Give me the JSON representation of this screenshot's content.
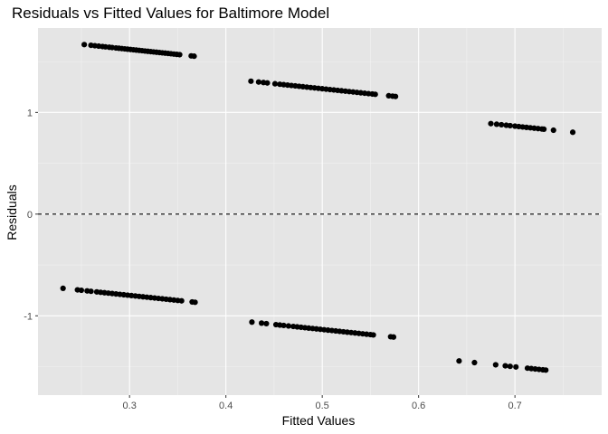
{
  "chart_data": {
    "type": "scatter",
    "title": "Residuals vs Fitted Values for Baltimore Model",
    "xlabel": "Fitted Values",
    "ylabel": "Residuals",
    "xlim": [
      0.205,
      0.79
    ],
    "ylim": [
      -1.78,
      1.83
    ],
    "x_ticks": [
      0.3,
      0.4,
      0.5,
      0.6,
      0.7
    ],
    "x_tick_labels": [
      "0.3",
      "0.4",
      "0.5",
      "0.6",
      "0.7"
    ],
    "y_ticks": [
      -1,
      0,
      1
    ],
    "y_tick_labels": [
      "-1",
      "0",
      "1"
    ],
    "reference_line": {
      "y": 0,
      "style": "dashed"
    },
    "grid": true,
    "background": "#e5e5e5",
    "point_color": "#000000",
    "bands": [
      {
        "slope": -1.0,
        "intercept": 1.92,
        "x": [
          0.253,
          0.26,
          0.264,
          0.268,
          0.272,
          0.275,
          0.279,
          0.282,
          0.286,
          0.289,
          0.292,
          0.295,
          0.298,
          0.301,
          0.304,
          0.307,
          0.31,
          0.313,
          0.316,
          0.319,
          0.322,
          0.325,
          0.328,
          0.331,
          0.334,
          0.337,
          0.34,
          0.343,
          0.346,
          0.349,
          0.352,
          0.364,
          0.367
        ]
      },
      {
        "slope": -1.0,
        "intercept": 1.733,
        "x": [
          0.426,
          0.434,
          0.439,
          0.443,
          0.451,
          0.456,
          0.46,
          0.464,
          0.468,
          0.472,
          0.476,
          0.48,
          0.484,
          0.488,
          0.492,
          0.496,
          0.5,
          0.504,
          0.508,
          0.512,
          0.516,
          0.52,
          0.524,
          0.528,
          0.532,
          0.536,
          0.54,
          0.544,
          0.548,
          0.552,
          0.555,
          0.569,
          0.573,
          0.576
        ]
      },
      {
        "slope": -1.0,
        "intercept": 1.565,
        "x": [
          0.675,
          0.681,
          0.686,
          0.691,
          0.695,
          0.7,
          0.704,
          0.708,
          0.712,
          0.716,
          0.72,
          0.724,
          0.728,
          0.73,
          0.74,
          0.76
        ]
      },
      {
        "slope": -1.0,
        "intercept": -0.499,
        "x": [
          0.231,
          0.246,
          0.25,
          0.256,
          0.26,
          0.266,
          0.27,
          0.274,
          0.278,
          0.282,
          0.286,
          0.29,
          0.294,
          0.298,
          0.302,
          0.306,
          0.31,
          0.314,
          0.318,
          0.322,
          0.326,
          0.33,
          0.334,
          0.338,
          0.342,
          0.346,
          0.35,
          0.354,
          0.365,
          0.368
        ]
      },
      {
        "slope": -1.0,
        "intercept": -0.635,
        "x": [
          0.427,
          0.437,
          0.442,
          0.452,
          0.456,
          0.46,
          0.465,
          0.47,
          0.474,
          0.478,
          0.482,
          0.486,
          0.49,
          0.494,
          0.498,
          0.502,
          0.506,
          0.51,
          0.514,
          0.518,
          0.522,
          0.526,
          0.53,
          0.534,
          0.538,
          0.542,
          0.546,
          0.55,
          0.553,
          0.571,
          0.574
        ]
      },
      {
        "slope": -1.0,
        "intercept": -0.802,
        "x": [
          0.642,
          0.658,
          0.68,
          0.69,
          0.695,
          0.701,
          0.713,
          0.717,
          0.721,
          0.725,
          0.729,
          0.732
        ]
      }
    ]
  }
}
